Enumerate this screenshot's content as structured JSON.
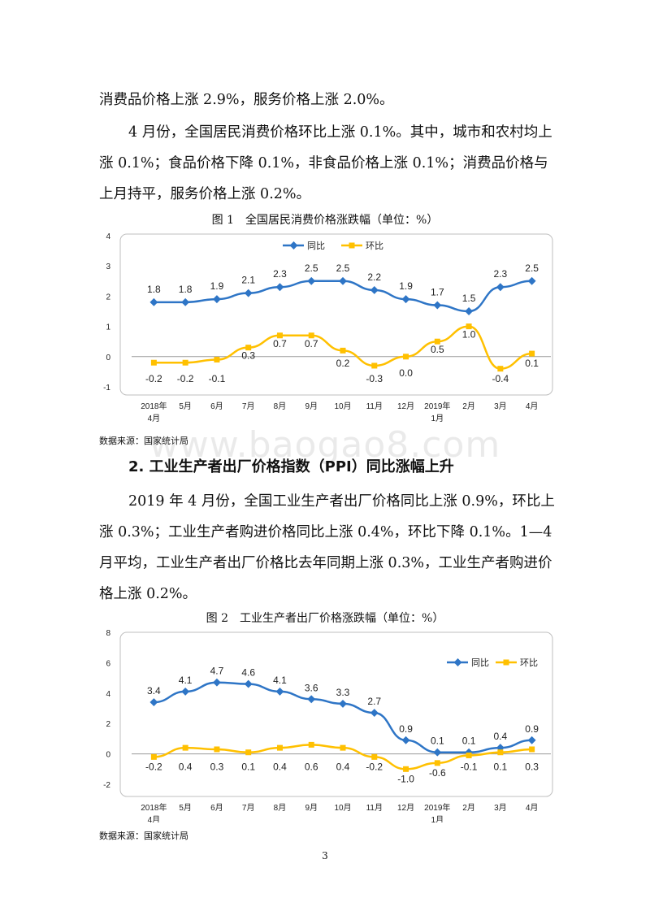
{
  "text": {
    "p1": "消费品价格上涨 2.9%，服务价格上涨 2.0%。",
    "p2": "4 月份，全国居民消费价格环比上涨 0.1%。其中，城市和农村均上涨 0.1%；食品价格下降 0.1%，非食品价格上涨 0.1%；消费品价格与上月持平，服务价格上涨 0.2%。",
    "caption1": "图 1　全国居民消费价格涨跌幅（单位：%）",
    "source1": "数据来源：国家统计局",
    "heading2": "2. 工业生产者出厂价格指数（PPI）同比涨幅上升",
    "p3": "2019 年 4 月份，全国工业生产者出厂价格同比上涨 0.9%，环比上涨 0.3%；工业生产者购进价格同比上涨 0.4%，环比下降 0.1%。1—4 月平均，工业生产者出厂价格比去年同期上涨 0.3%，工业生产者购进价格上涨 0.2%。",
    "caption2": "图 2　工业生产者出厂价格涨跌幅（单位：%）",
    "source2": "数据来源：国家统计局",
    "watermark": "www.baogao8.com",
    "page_number": "3"
  },
  "chart_data": [
    {
      "type": "line",
      "categories": [
        [
          "2018年",
          "4月"
        ],
        [
          "5月"
        ],
        [
          "6月"
        ],
        [
          "7月"
        ],
        [
          "8月"
        ],
        [
          "9月"
        ],
        [
          "10月"
        ],
        [
          "11月"
        ],
        [
          "12月"
        ],
        [
          "2019年",
          "1月"
        ],
        [
          "2月"
        ],
        [
          "3月"
        ],
        [
          "4月"
        ]
      ],
      "series": [
        {
          "name": "同比",
          "color": "#2e75c6",
          "values": [
            1.8,
            1.8,
            1.9,
            2.1,
            2.3,
            2.5,
            2.5,
            2.2,
            1.9,
            1.7,
            1.5,
            2.3,
            2.5
          ],
          "labels": [
            "1.8",
            "1.8",
            "1.9",
            "2.1",
            "2.3",
            "2.5",
            "2.5",
            "2.2",
            "1.9",
            "1.7",
            "1.5",
            "2.3",
            "2.5"
          ]
        },
        {
          "name": "环比",
          "color": "#ffc000",
          "values": [
            -0.2,
            -0.2,
            -0.1,
            0.3,
            0.7,
            0.7,
            0.2,
            -0.3,
            0.0,
            0.5,
            1.0,
            -0.4,
            0.1
          ],
          "labels": [
            "-0.2",
            "-0.2",
            "-0.1",
            "0.3",
            "0.7",
            "0.7",
            "0.2",
            "-0.3",
            "0.0",
            "0.5",
            "1.0",
            "-0.4",
            "0.1"
          ]
        }
      ],
      "ylim": [
        -1,
        4
      ],
      "yticks": [
        "-1",
        "0",
        "1",
        "2",
        "3",
        "4"
      ],
      "legend": "top-center"
    },
    {
      "type": "line",
      "categories": [
        [
          "2018年",
          "4月"
        ],
        [
          "5月"
        ],
        [
          "6月"
        ],
        [
          "7月"
        ],
        [
          "8月"
        ],
        [
          "9月"
        ],
        [
          "10月"
        ],
        [
          "11月"
        ],
        [
          "12月"
        ],
        [
          "2019年",
          "1月"
        ],
        [
          "2月"
        ],
        [
          "3月"
        ],
        [
          "4月"
        ]
      ],
      "series": [
        {
          "name": "同比",
          "color": "#2e75c6",
          "values": [
            3.4,
            4.1,
            4.7,
            4.6,
            4.1,
            3.6,
            3.3,
            2.7,
            0.9,
            0.1,
            0.1,
            0.4,
            0.9
          ],
          "labels": [
            "3.4",
            "4.1",
            "4.7",
            "4.6",
            "4.1",
            "3.6",
            "3.3",
            "2.7",
            "0.9",
            "0.1",
            "0.1",
            "0.4",
            "0.9"
          ]
        },
        {
          "name": "环比",
          "color": "#ffc000",
          "values": [
            -0.2,
            0.4,
            0.3,
            0.1,
            0.4,
            0.6,
            0.4,
            -0.2,
            -1.0,
            -0.6,
            -0.1,
            0.1,
            0.3
          ],
          "labels": [
            "-0.2",
            "0.4",
            "0.3",
            "0.1",
            "0.4",
            "0.6",
            "0.4",
            "-0.2",
            "-1.0",
            "-0.6",
            "-0.1",
            "0.1",
            "0.3"
          ]
        }
      ],
      "ylim": [
        -2,
        8
      ],
      "yticks": [
        "-2",
        "0",
        "2",
        "4",
        "6",
        "8"
      ],
      "legend": "top-right"
    }
  ]
}
